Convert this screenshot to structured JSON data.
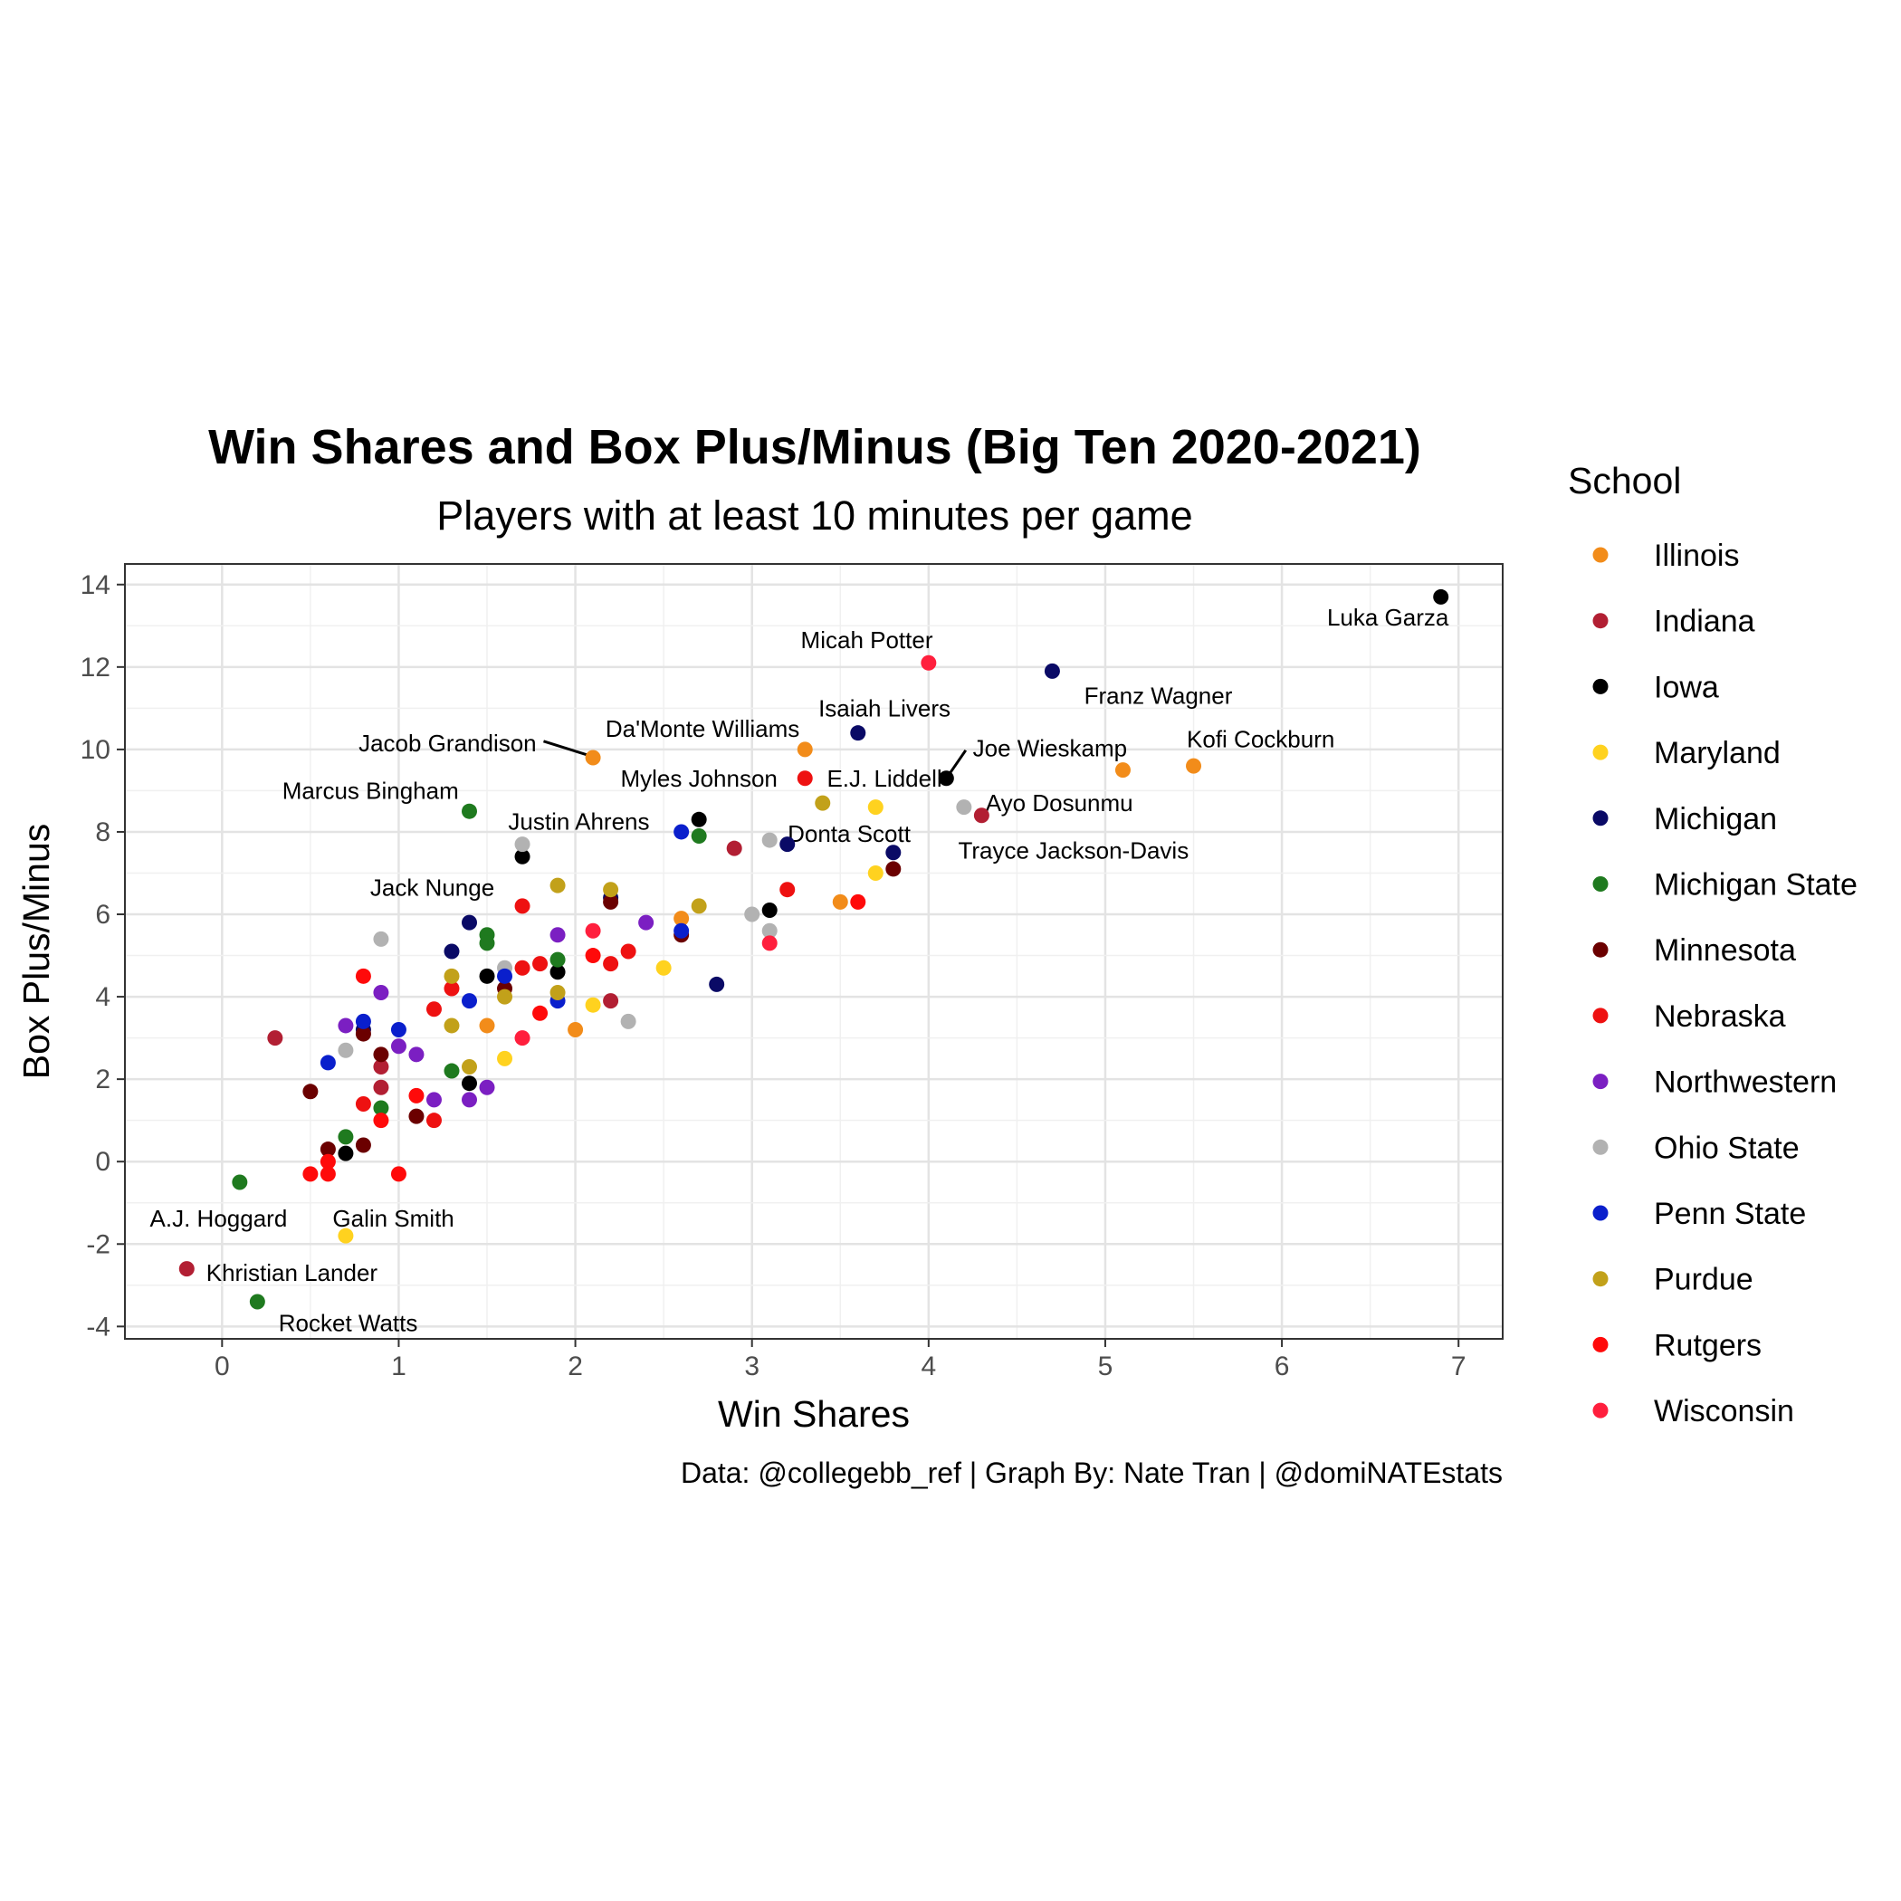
{
  "chart_data": {
    "type": "scatter",
    "title": "Win Shares and Box Plus/Minus (Big Ten 2020-2021)",
    "subtitle": "Players with at least 10 minutes per game",
    "xlabel": "Win Shares",
    "ylabel": "Box Plus/Minus",
    "caption": "Data: @collegebb_ref | Graph By: Nate Tran | @domiNATEstats",
    "xlim": [
      -0.55,
      7.25
    ],
    "ylim": [
      -4.3,
      14.5
    ],
    "xticks": [
      0,
      1,
      2,
      3,
      4,
      5,
      6,
      7
    ],
    "yticks": [
      -4,
      -2,
      0,
      2,
      4,
      6,
      8,
      10,
      12,
      14
    ],
    "grid": true,
    "legend": {
      "title": "School",
      "position": "right",
      "entries": [
        {
          "name": "Illinois",
          "color": "#F28C1A"
        },
        {
          "name": "Indiana",
          "color": "#B21F33"
        },
        {
          "name": "Iowa",
          "color": "#000000"
        },
        {
          "name": "Maryland",
          "color": "#FFD21F"
        },
        {
          "name": "Michigan",
          "color": "#0A0A66"
        },
        {
          "name": "Michigan State",
          "color": "#1F7A1F"
        },
        {
          "name": "Minnesota",
          "color": "#6B0000"
        },
        {
          "name": "Nebraska",
          "color": "#EE1111"
        },
        {
          "name": "Northwestern",
          "color": "#7B1FC2"
        },
        {
          "name": "Ohio State",
          "color": "#B2B2B2"
        },
        {
          "name": "Penn State",
          "color": "#0A1FCC"
        },
        {
          "name": "Purdue",
          "color": "#C2A11A"
        },
        {
          "name": "Rutgers",
          "color": "#FF0A0A"
        },
        {
          "name": "Wisconsin",
          "color": "#FF1F3D"
        }
      ]
    },
    "series": [
      {
        "name": "Illinois",
        "points": [
          [
            5.5,
            9.6
          ],
          [
            5.1,
            9.5
          ],
          [
            3.3,
            10.0
          ],
          [
            2.1,
            9.8
          ],
          [
            3.5,
            6.3
          ],
          [
            2.6,
            5.9
          ],
          [
            2.0,
            3.2
          ],
          [
            1.5,
            3.3
          ]
        ]
      },
      {
        "name": "Indiana",
        "points": [
          [
            4.3,
            8.4
          ],
          [
            2.9,
            7.6
          ],
          [
            2.2,
            3.9
          ],
          [
            0.3,
            3.0
          ],
          [
            0.9,
            2.3
          ],
          [
            0.9,
            1.8
          ],
          [
            -0.2,
            -2.6
          ]
        ]
      },
      {
        "name": "Iowa",
        "points": [
          [
            6.9,
            13.7
          ],
          [
            4.1,
            9.3
          ],
          [
            2.7,
            8.3
          ],
          [
            1.7,
            7.4
          ],
          [
            3.1,
            6.1
          ],
          [
            1.9,
            4.6
          ],
          [
            1.5,
            4.5
          ],
          [
            1.4,
            1.9
          ],
          [
            0.7,
            0.2
          ]
        ]
      },
      {
        "name": "Maryland",
        "points": [
          [
            3.7,
            8.6
          ],
          [
            3.7,
            7.0
          ],
          [
            2.5,
            4.7
          ],
          [
            2.1,
            3.8
          ],
          [
            1.6,
            2.5
          ],
          [
            0.7,
            -1.8
          ]
        ]
      },
      {
        "name": "Michigan",
        "points": [
          [
            4.7,
            11.9
          ],
          [
            3.6,
            10.4
          ],
          [
            3.8,
            7.5
          ],
          [
            3.2,
            7.7
          ],
          [
            2.2,
            6.4
          ],
          [
            1.4,
            5.8
          ],
          [
            1.3,
            5.1
          ],
          [
            2.8,
            4.3
          ],
          [
            0.8,
            3.2
          ]
        ]
      },
      {
        "name": "Michigan State",
        "points": [
          [
            1.4,
            8.5
          ],
          [
            2.7,
            7.9
          ],
          [
            1.5,
            5.5
          ],
          [
            1.5,
            5.3
          ],
          [
            1.9,
            4.9
          ],
          [
            1.3,
            2.2
          ],
          [
            0.9,
            1.3
          ],
          [
            0.7,
            0.6
          ],
          [
            0.1,
            -0.5
          ],
          [
            0.2,
            -3.4
          ]
        ]
      },
      {
        "name": "Minnesota",
        "points": [
          [
            3.8,
            7.1
          ],
          [
            2.6,
            5.5
          ],
          [
            2.2,
            6.3
          ],
          [
            0.8,
            3.1
          ],
          [
            0.9,
            2.6
          ],
          [
            0.5,
            1.7
          ],
          [
            1.1,
            1.1
          ],
          [
            0.6,
            0.3
          ],
          [
            0.8,
            0.4
          ],
          [
            1.6,
            4.2
          ]
        ]
      },
      {
        "name": "Nebraska",
        "points": [
          [
            3.3,
            9.3
          ],
          [
            3.2,
            6.6
          ],
          [
            1.7,
            6.2
          ],
          [
            1.7,
            4.7
          ],
          [
            2.3,
            5.1
          ],
          [
            2.2,
            4.8
          ],
          [
            1.8,
            4.8
          ],
          [
            1.2,
            3.7
          ],
          [
            1.3,
            4.2
          ],
          [
            0.8,
            1.4
          ],
          [
            1.2,
            1.0
          ]
        ]
      },
      {
        "name": "Northwestern",
        "points": [
          [
            2.4,
            5.8
          ],
          [
            1.9,
            5.5
          ],
          [
            0.9,
            4.1
          ],
          [
            0.7,
            3.3
          ],
          [
            1.0,
            2.8
          ],
          [
            1.1,
            2.6
          ],
          [
            1.2,
            1.5
          ],
          [
            1.4,
            1.5
          ],
          [
            1.5,
            1.8
          ]
        ]
      },
      {
        "name": "Ohio State",
        "points": [
          [
            4.2,
            8.6
          ],
          [
            3.1,
            7.8
          ],
          [
            1.7,
            7.7
          ],
          [
            3.0,
            6.0
          ],
          [
            3.1,
            5.6
          ],
          [
            0.9,
            5.4
          ],
          [
            1.6,
            4.7
          ],
          [
            2.3,
            3.4
          ],
          [
            0.7,
            2.7
          ]
        ]
      },
      {
        "name": "Penn State",
        "points": [
          [
            2.6,
            8.0
          ],
          [
            2.6,
            5.6
          ],
          [
            1.6,
            4.5
          ],
          [
            1.9,
            3.9
          ],
          [
            1.4,
            3.9
          ],
          [
            1.0,
            3.2
          ],
          [
            0.8,
            3.4
          ],
          [
            0.6,
            2.4
          ]
        ]
      },
      {
        "name": "Purdue",
        "points": [
          [
            3.4,
            8.7
          ],
          [
            1.9,
            6.7
          ],
          [
            2.2,
            6.6
          ],
          [
            2.7,
            6.2
          ],
          [
            1.3,
            4.5
          ],
          [
            1.6,
            4.0
          ],
          [
            1.9,
            4.1
          ],
          [
            1.3,
            3.3
          ],
          [
            1.4,
            2.3
          ]
        ]
      },
      {
        "name": "Rutgers",
        "points": [
          [
            3.6,
            6.3
          ],
          [
            2.1,
            5.0
          ],
          [
            0.8,
            4.5
          ],
          [
            0.9,
            1.0
          ],
          [
            1.1,
            1.6
          ],
          [
            0.5,
            -0.3
          ],
          [
            0.6,
            -0.3
          ],
          [
            1.0,
            -0.3
          ],
          [
            0.6,
            0.0
          ],
          [
            1.8,
            3.6
          ]
        ]
      },
      {
        "name": "Wisconsin",
        "points": [
          [
            4.0,
            12.1
          ],
          [
            3.1,
            5.3
          ],
          [
            2.1,
            5.6
          ],
          [
            1.7,
            3.0
          ]
        ]
      }
    ],
    "annotations": [
      {
        "text": "Luka Garza",
        "x": 6.9,
        "y": 13.7,
        "lx": 6.6,
        "ly": 13.2,
        "anchor": "middle"
      },
      {
        "text": "Micah Potter",
        "x": 4.0,
        "y": 12.1,
        "lx": 3.65,
        "ly": 12.65,
        "anchor": "middle"
      },
      {
        "text": "Franz Wagner",
        "x": 4.7,
        "y": 11.9,
        "lx": 5.3,
        "ly": 11.3,
        "anchor": "middle"
      },
      {
        "text": "Isaiah Livers",
        "x": 3.6,
        "y": 10.4,
        "lx": 3.75,
        "ly": 11.0,
        "anchor": "middle"
      },
      {
        "text": "Da'Monte Williams",
        "x": 3.3,
        "y": 10.0,
        "lx": 2.72,
        "ly": 10.5,
        "anchor": "middle"
      },
      {
        "text": "Jacob Grandison",
        "x": 2.1,
        "y": 9.8,
        "lx": 1.78,
        "ly": 10.15,
        "anchor": "end",
        "leader": [
          1.82,
          10.2,
          2.08,
          9.85
        ]
      },
      {
        "text": "Kofi Cockburn",
        "x": 5.5,
        "y": 9.6,
        "lx": 5.88,
        "ly": 10.25,
        "anchor": "middle"
      },
      {
        "text": "Joe Wieskamp",
        "x": 4.1,
        "y": 9.3,
        "lx": 4.25,
        "ly": 10.03,
        "anchor": "start",
        "leader": [
          4.21,
          9.98,
          4.12,
          9.42
        ]
      },
      {
        "text": "Myles Johnson",
        "x": 3.3,
        "y": 9.3,
        "lx": 2.7,
        "ly": 9.3,
        "anchor": "middle"
      },
      {
        "text": "E.J. Liddell",
        "x": 3.3,
        "y": 9.3,
        "lx": 3.75,
        "ly": 9.3,
        "anchor": "middle"
      },
      {
        "text": "Marcus Bingham",
        "x": 1.4,
        "y": 8.5,
        "lx": 0.84,
        "ly": 9.0,
        "anchor": "middle"
      },
      {
        "text": "Ayo Dosunmu",
        "x": 4.3,
        "y": 8.4,
        "lx": 4.74,
        "ly": 8.7,
        "anchor": "middle"
      },
      {
        "text": "Justin Ahrens",
        "x": 2.7,
        "y": 8.3,
        "lx": 2.02,
        "ly": 8.25,
        "anchor": "middle"
      },
      {
        "text": "Donta Scott",
        "x": 3.8,
        "y": 7.1,
        "lx": 3.55,
        "ly": 7.95,
        "anchor": "middle"
      },
      {
        "text": "Trayce Jackson-Davis",
        "x": 4.3,
        "y": 8.4,
        "lx": 4.82,
        "ly": 7.55,
        "anchor": "middle"
      },
      {
        "text": "Jack Nunge",
        "x": 1.7,
        "y": 7.4,
        "lx": 1.19,
        "ly": 6.65,
        "anchor": "middle"
      },
      {
        "text": "A.J. Hoggard",
        "x": 0.1,
        "y": -0.5,
        "lx": -0.02,
        "ly": -1.38,
        "anchor": "middle"
      },
      {
        "text": "Galin Smith",
        "x": 0.7,
        "y": -1.8,
        "lx": 0.97,
        "ly": -1.38,
        "anchor": "middle"
      },
      {
        "text": "Khristian Lander",
        "x": -0.2,
        "y": -2.6,
        "lx": -0.09,
        "ly": -2.7,
        "anchor": "start"
      },
      {
        "text": "Rocket Watts",
        "x": 0.2,
        "y": -3.4,
        "lx": 0.32,
        "ly": -3.92,
        "anchor": "start"
      }
    ]
  }
}
